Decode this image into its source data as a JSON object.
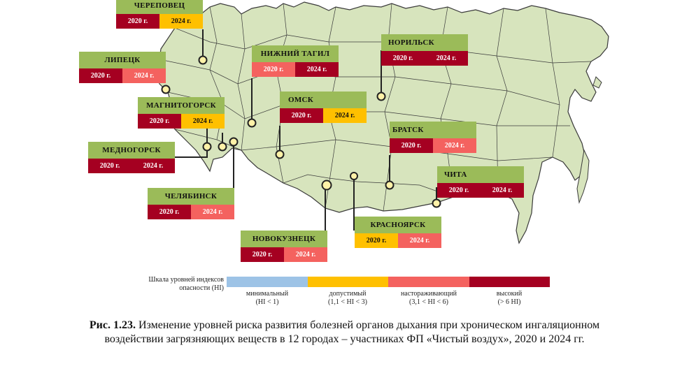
{
  "colors": {
    "land": "#d7e4bd",
    "border": "#3a3a3a",
    "header": "#9bbb59",
    "minimal": "#9dc3e6",
    "acceptable": "#ffc000",
    "alarming": "#f4625f",
    "high": "#a50021"
  },
  "cities": [
    {
      "id": "cherepovets",
      "name": "ЧЕРЕПОВЕЦ",
      "y2020": "2020 г.",
      "y2024": "2024 г.",
      "level2020": "high",
      "level2024": "acceptable"
    },
    {
      "id": "lipetsk",
      "name": "ЛИПЕЦК",
      "y2020": "2020 г.",
      "y2024": "2024 г.",
      "level2020": "high",
      "level2024": "alarming"
    },
    {
      "id": "magnitogorsk",
      "name": "МАГНИТОГОРСК",
      "y2020": "2020 г.",
      "y2024": "2024 г.",
      "level2020": "high",
      "level2024": "acceptable"
    },
    {
      "id": "mednogorsk",
      "name": "МЕДНОГОРСК",
      "y2020": "2020 г.",
      "y2024": "2024 г.",
      "level2020": "high",
      "level2024": "high"
    },
    {
      "id": "chelyabinsk",
      "name": "ЧЕЛЯБИНСК",
      "y2020": "2020 г.",
      "y2024": "2024 г.",
      "level2020": "high",
      "level2024": "alarming"
    },
    {
      "id": "nizhny-tagil",
      "name": "НИЖНИЙ ТАГИЛ",
      "y2020": "2020 г.",
      "y2024": "2024 г.",
      "level2020": "alarming",
      "level2024": "high"
    },
    {
      "id": "omsk",
      "name": "ОМСК",
      "y2020": "2020 г.",
      "y2024": "2024 г.",
      "level2020": "high",
      "level2024": "acceptable"
    },
    {
      "id": "novokuznetsk",
      "name": "НОВОКУЗНЕЦК",
      "y2020": "2020 г.",
      "y2024": "2024 г.",
      "level2020": "high",
      "level2024": "alarming"
    },
    {
      "id": "norilsk",
      "name": "НОРИЛЬСК",
      "y2020": "2020 г.",
      "y2024": "2024 г.",
      "level2020": "high",
      "level2024": "high"
    },
    {
      "id": "bratsk",
      "name": "БРАТСК",
      "y2020": "2020 г.",
      "y2024": "2024 г.",
      "level2020": "high",
      "level2024": "alarming"
    },
    {
      "id": "chita",
      "name": "ЧИТА",
      "y2020": "2020 г.",
      "y2024": "2024 г.",
      "level2020": "high",
      "level2024": "high"
    },
    {
      "id": "krasnoyarsk",
      "name": "КРАСНОЯРСК",
      "y2020": "2020 г.",
      "y2024": "2024 г.",
      "level2020": "acceptable",
      "level2024": "alarming"
    }
  ],
  "scale": {
    "title": "Шкала уровней индексов опасности (HI)",
    "levels": [
      {
        "key": "minimal",
        "label": "минимальный",
        "range": "(HI < 1)"
      },
      {
        "key": "acceptable",
        "label": "допустимый",
        "range": "(1,1 < HI < 3)"
      },
      {
        "key": "alarming",
        "label": "настораживающий",
        "range": "(3,1 < HI < 6)"
      },
      {
        "key": "high",
        "label": "высокий",
        "range": "(> 6 HI)"
      }
    ]
  },
  "caption": {
    "prefix": "Рис. 1.23.",
    "text": "Изменение уровней риска развития болезней органов дыхания при хроническом ингаляционном воздействии загрязняющих веществ в 12 городах – участниках ФП «Чистый воздух», 2020 и 2024 гг."
  }
}
